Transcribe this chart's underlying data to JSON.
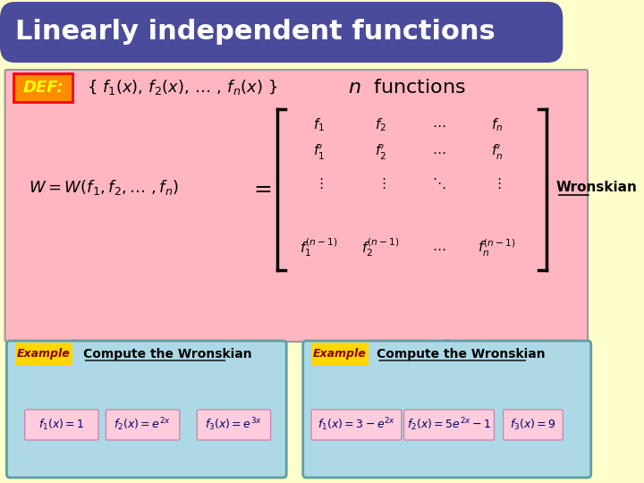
{
  "title": "Linearly independent functions",
  "title_bg": "#4B4B9B",
  "title_color": "#FFFFFF",
  "slide_bg": "#FFFFCC",
  "main_box_bg": "#FFB6C1",
  "main_box_border": "#AAAAAA",
  "def_label_bg": "#FF8C00",
  "def_label_color": "#FFFF00",
  "def_label_border": "#FF0000",
  "example_label_bg": "#FFD700",
  "example_box_bg": "#ADD8E6",
  "example_box_border": "#5F9EA0",
  "formula_box_bg": "#FFB6C1",
  "func_box_bg": "#FFB6D9",
  "wronskian_color": "#000000",
  "left_box_funcs": [
    "f_1(x) = 1",
    "f_2(x) = e^{2x}",
    "f_3(x) = e^{3x}"
  ],
  "right_box_funcs": [
    "f_1(x) = 3 - e^{2x}",
    "f_2(x) = 5e^{2x} - 1",
    "f_3(x) = 9"
  ]
}
